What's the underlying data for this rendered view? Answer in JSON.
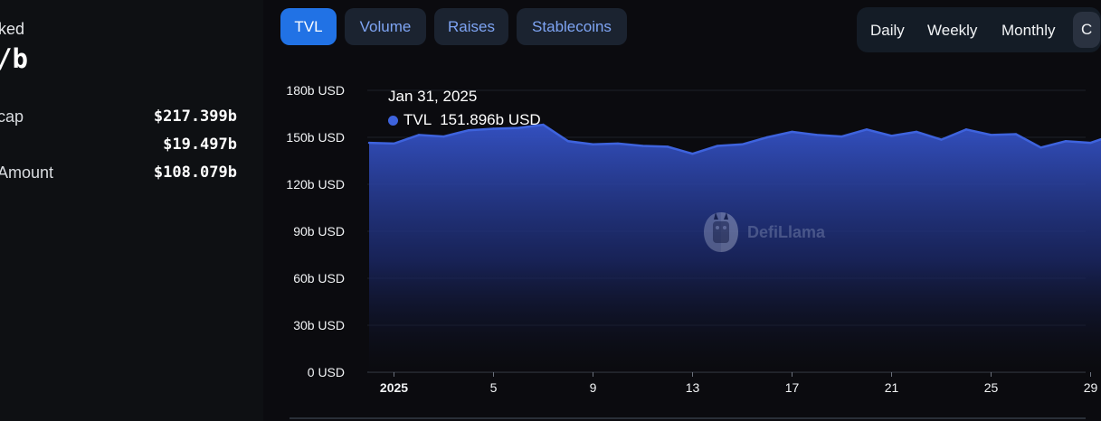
{
  "stats": {
    "heading": "ked",
    "big_value": "/b",
    "rows": [
      {
        "label": "cap",
        "value": "$217.399b"
      },
      {
        "label": "",
        "value": "$19.497b"
      },
      {
        "label": "Amount",
        "value": "$108.079b"
      }
    ]
  },
  "tabs": [
    {
      "label": "TVL",
      "active": true
    },
    {
      "label": "Volume",
      "active": false
    },
    {
      "label": "Raises",
      "active": false
    },
    {
      "label": "Stablecoins",
      "active": false
    }
  ],
  "periods": [
    {
      "label": "Daily"
    },
    {
      "label": "Weekly"
    },
    {
      "label": "Monthly"
    },
    {
      "label": "C"
    }
  ],
  "tooltip": {
    "date": "Jan 31, 2025",
    "series": "TVL",
    "value": "151.896b USD"
  },
  "watermark": {
    "label": "DefiLlama",
    "icon": "llama-logo-icon"
  },
  "colors": {
    "accent": "#2172e5",
    "series": "#3e63dd",
    "tab_text": "#7ea4f3",
    "tab_bg": "#1b2330"
  },
  "chart_data": {
    "type": "area",
    "y_tick_labels": [
      "0 USD",
      "30b USD",
      "60b USD",
      "90b USD",
      "120b USD",
      "150b USD",
      "180b USD"
    ],
    "y_ticks": [
      0,
      30,
      60,
      90,
      120,
      150,
      180
    ],
    "ylim": [
      0,
      180
    ],
    "y_unit": "b USD",
    "x_tick_labels": [
      "2025",
      "5",
      "9",
      "13",
      "17",
      "21",
      "25",
      "29"
    ],
    "x_tick_days": [
      1,
      5,
      9,
      13,
      17,
      21,
      25,
      29
    ],
    "x_start_day": 0,
    "grid": true,
    "series": [
      {
        "name": "TVL",
        "x": [
          0,
          1,
          2,
          3,
          4,
          5,
          6,
          7,
          8,
          9,
          10,
          11,
          12,
          13,
          14,
          15,
          16,
          17,
          18,
          19,
          20,
          21,
          22,
          23,
          24,
          25,
          26,
          27,
          28,
          29,
          30
        ],
        "values": [
          146.5,
          146.0,
          151.5,
          150.5,
          154.5,
          155.5,
          156.0,
          158.0,
          147.5,
          145.5,
          146.0,
          144.5,
          144.0,
          139.5,
          144.5,
          145.5,
          150.0,
          153.5,
          151.5,
          150.5,
          155.0,
          151.0,
          153.5,
          148.5,
          155.0,
          151.5,
          152.0,
          143.5,
          147.5,
          146.5,
          151.9
        ]
      }
    ]
  }
}
